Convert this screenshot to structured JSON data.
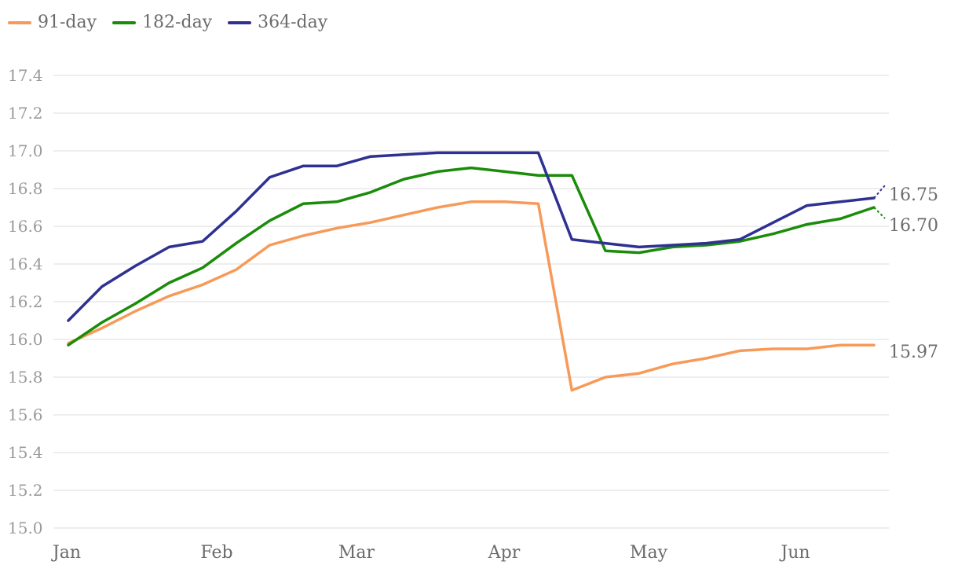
{
  "legend": {
    "items": [
      {
        "label": "91-day",
        "color": "#f79a59"
      },
      {
        "label": "182-day",
        "color": "#1a8c0a"
      },
      {
        "label": "364-day",
        "color": "#2e3192"
      }
    ]
  },
  "chart_data": {
    "type": "line",
    "title": "",
    "xlabel": "",
    "ylabel": "",
    "ylim": [
      15.0,
      17.4
    ],
    "yticks": [
      "15.0",
      "15.2",
      "15.4",
      "15.6",
      "15.8",
      "16.0",
      "16.2",
      "16.4",
      "16.6",
      "16.8",
      "17.0",
      "17.2",
      "17.4"
    ],
    "month_labels": [
      "Jan",
      "Feb",
      "Mar",
      "Apr",
      "May",
      "Jun"
    ],
    "grid": true,
    "legend_position": "top-left",
    "series": [
      {
        "name": "91-day",
        "color": "#f79a59",
        "values": [
          15.98,
          16.06,
          16.15,
          16.23,
          16.29,
          16.37,
          16.5,
          16.55,
          16.59,
          16.62,
          16.66,
          16.7,
          16.73,
          16.73,
          16.72,
          15.73,
          15.8,
          15.82,
          15.87,
          15.9,
          15.94,
          15.95,
          15.95,
          15.97,
          15.97
        ],
        "end_label": "15.97"
      },
      {
        "name": "182-day",
        "color": "#1a8c0a",
        "values": [
          15.97,
          16.09,
          16.19,
          16.3,
          16.38,
          16.51,
          16.63,
          16.72,
          16.73,
          16.78,
          16.85,
          16.89,
          16.91,
          16.89,
          16.87,
          16.87,
          16.47,
          16.46,
          16.49,
          16.5,
          16.52,
          16.56,
          16.61,
          16.64,
          16.7
        ],
        "end_label": "16.70"
      },
      {
        "name": "364-day",
        "color": "#2e3192",
        "values": [
          16.1,
          16.28,
          16.39,
          16.49,
          16.52,
          16.68,
          16.86,
          16.92,
          16.92,
          16.97,
          16.98,
          16.99,
          16.99,
          16.99,
          16.99,
          16.53,
          16.51,
          16.49,
          16.5,
          16.51,
          16.53,
          16.62,
          16.71,
          16.73,
          16.75
        ],
        "end_label": "16.75"
      }
    ]
  }
}
